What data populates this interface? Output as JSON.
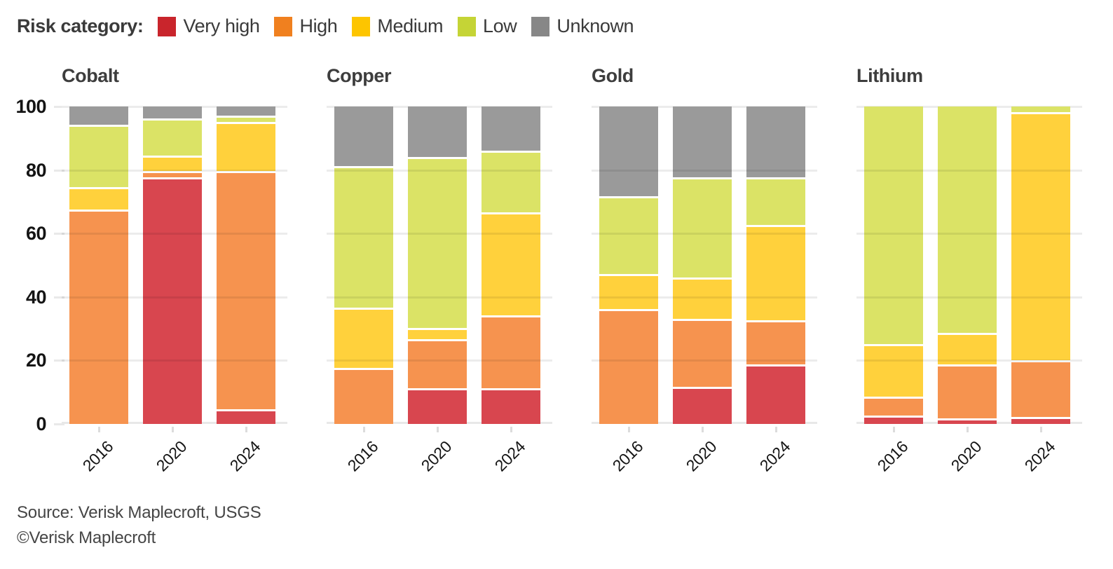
{
  "legend": {
    "title": "Risk category:",
    "items": [
      {
        "label": "Very high",
        "color": "#c9252c"
      },
      {
        "label": "High",
        "color": "#f0801f"
      },
      {
        "label": "Medium",
        "color": "#fdc500"
      },
      {
        "label": "Low",
        "color": "#c5d436"
      },
      {
        "label": "Unknown",
        "color": "#878787"
      }
    ]
  },
  "bar_colors": {
    "Very high": "#d8464f",
    "High": "#f6934f",
    "Medium": "#ffd13c",
    "Low": "#dbe366",
    "Unknown": "#9a9a9a"
  },
  "y_axis": {
    "ticks": [
      0,
      20,
      40,
      60,
      80,
      100
    ]
  },
  "source": {
    "line1": "Source: Verisk Maplecroft, USGS",
    "line2": "©Verisk Maplecroft"
  },
  "chart_data": [
    {
      "type": "bar",
      "stacked": true,
      "title": "Cobalt",
      "categories": [
        "2016",
        "2020",
        "2024"
      ],
      "ylim": [
        0,
        100
      ],
      "grid": true,
      "legend_position": "top",
      "series": [
        {
          "name": "Very high",
          "values": [
            0,
            77,
            4
          ]
        },
        {
          "name": "High",
          "values": [
            67,
            2,
            75
          ]
        },
        {
          "name": "Medium",
          "values": [
            7,
            5,
            15.5
          ]
        },
        {
          "name": "Low",
          "values": [
            19.5,
            11.5,
            2
          ]
        },
        {
          "name": "Unknown",
          "values": [
            6.5,
            4.5,
            3.5
          ]
        }
      ]
    },
    {
      "type": "bar",
      "stacked": true,
      "title": "Copper",
      "categories": [
        "2016",
        "2020",
        "2024"
      ],
      "ylim": [
        0,
        100
      ],
      "grid": true,
      "legend_position": "top",
      "series": [
        {
          "name": "Very high",
          "values": [
            0,
            10.5,
            10.5
          ]
        },
        {
          "name": "High",
          "values": [
            17,
            15.5,
            23
          ]
        },
        {
          "name": "Medium",
          "values": [
            19,
            3.5,
            32.5
          ]
        },
        {
          "name": "Low",
          "values": [
            44.5,
            54,
            19.5
          ]
        },
        {
          "name": "Unknown",
          "values": [
            19.5,
            16.5,
            14.5
          ]
        }
      ]
    },
    {
      "type": "bar",
      "stacked": true,
      "title": "Gold",
      "categories": [
        "2016",
        "2020",
        "2024"
      ],
      "ylim": [
        0,
        100
      ],
      "grid": true,
      "legend_position": "top",
      "series": [
        {
          "name": "Very high",
          "values": [
            0,
            11,
            18
          ]
        },
        {
          "name": "High",
          "values": [
            35.5,
            21.5,
            14
          ]
        },
        {
          "name": "Medium",
          "values": [
            11,
            13,
            30
          ]
        },
        {
          "name": "Low",
          "values": [
            24.5,
            31.5,
            15
          ]
        },
        {
          "name": "Unknown",
          "values": [
            29,
            23,
            23
          ]
        }
      ]
    },
    {
      "type": "bar",
      "stacked": true,
      "title": "Lithium",
      "categories": [
        "2016",
        "2020",
        "2024"
      ],
      "ylim": [
        0,
        100
      ],
      "grid": true,
      "legend_position": "top",
      "series": [
        {
          "name": "Very high",
          "values": [
            2,
            1,
            1.5
          ]
        },
        {
          "name": "High",
          "values": [
            6,
            17,
            18
          ]
        },
        {
          "name": "Medium",
          "values": [
            16.5,
            10,
            78
          ]
        },
        {
          "name": "Low",
          "values": [
            75.5,
            72,
            2.5
          ]
        },
        {
          "name": "Unknown",
          "values": [
            0,
            0,
            0
          ]
        }
      ]
    }
  ]
}
